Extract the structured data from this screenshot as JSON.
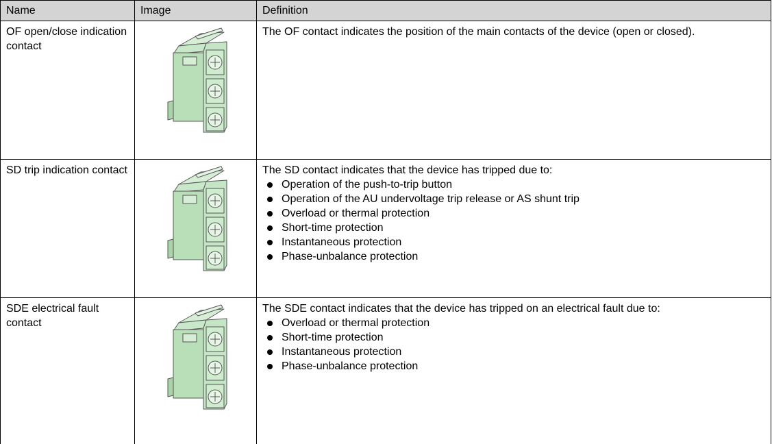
{
  "table": {
    "header": [
      "Name",
      "Image",
      "Definition"
    ],
    "rows": [
      {
        "name": "OF open/close indication contact",
        "intro": "The OF contact indicates the position of the main contacts of the device (open or closed).",
        "bullets": []
      },
      {
        "name": "SD trip indication contact",
        "intro": "The SD contact indicates that the device has tripped due to:",
        "bullets": [
          "Operation of the push-to-trip button",
          "Operation of the AU undervoltage trip release or AS shunt trip",
          "Overload or thermal protection",
          "Short-time protection",
          "Instantaneous protection",
          "Phase-unbalance protection"
        ]
      },
      {
        "name": "SDE electrical fault contact",
        "intro": "The SDE contact indicates that the device has tripped on an electrical fault due to:",
        "bullets": [
          "Overload or thermal protection",
          "Short-time protection",
          "Instantaneous protection",
          "Phase-unbalance protection"
        ]
      }
    ]
  }
}
